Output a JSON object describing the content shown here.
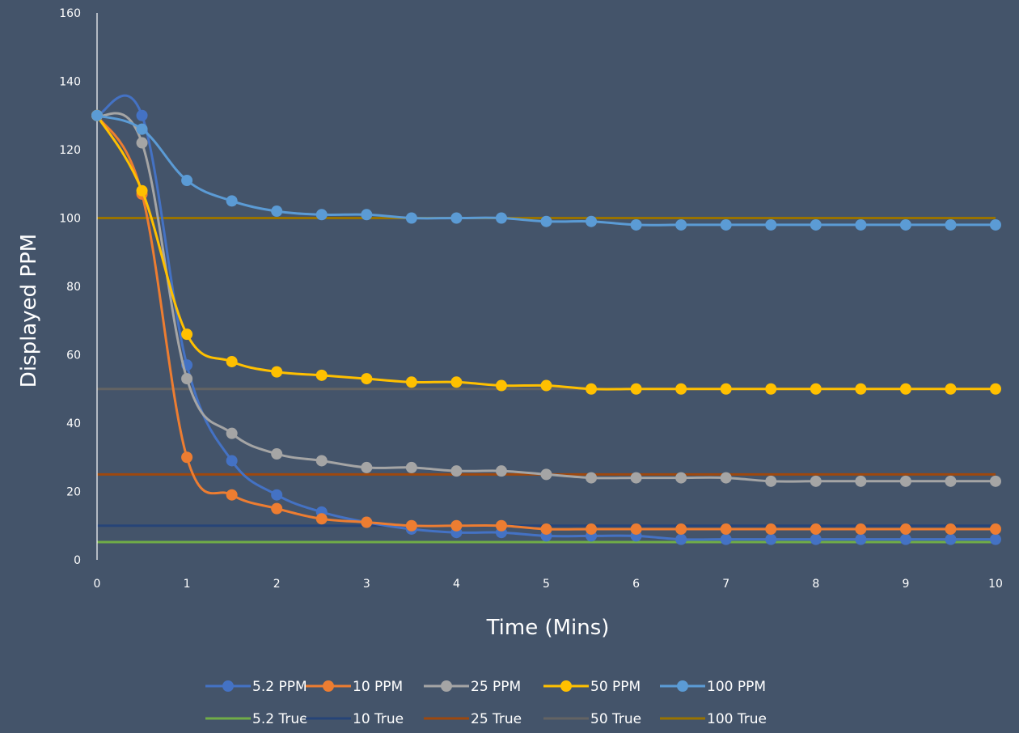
{
  "chart_data": {
    "type": "line",
    "title": "",
    "xlabel": "Time (Mins)",
    "ylabel": "Displayed PPM",
    "xlim": [
      0,
      10
    ],
    "ylim": [
      0,
      160
    ],
    "x_ticks": [
      "0",
      "1",
      "2",
      "3",
      "4",
      "5",
      "6",
      "7",
      "8",
      "9",
      "10"
    ],
    "y_ticks": [
      "0",
      "20",
      "40",
      "60",
      "80",
      "100",
      "120",
      "140",
      "160"
    ],
    "grid": false,
    "legend_position": "bottom",
    "x": [
      0,
      0.5,
      1,
      1.5,
      2,
      2.5,
      3,
      3.5,
      4,
      4.5,
      5,
      5.5,
      6,
      6.5,
      7,
      7.5,
      8,
      8.5,
      9,
      9.5,
      10
    ],
    "series": [
      {
        "name": "5.2 PPM",
        "color": "#4472c4",
        "markers": true,
        "values": [
          130,
          130,
          57,
          29,
          19,
          14,
          11,
          9,
          8,
          8,
          7,
          7,
          7,
          6,
          6,
          6,
          6,
          6,
          6,
          6,
          6
        ]
      },
      {
        "name": "10 PPM",
        "color": "#ed7d31",
        "markers": true,
        "values": [
          130,
          107,
          30,
          19,
          15,
          12,
          11,
          10,
          10,
          10,
          9,
          9,
          9,
          9,
          9,
          9,
          9,
          9,
          9,
          9,
          9
        ]
      },
      {
        "name": "25 PPM",
        "color": "#a5a5a5",
        "markers": true,
        "values": [
          130,
          122,
          53,
          37,
          31,
          29,
          27,
          27,
          26,
          26,
          25,
          24,
          24,
          24,
          24,
          23,
          23,
          23,
          23,
          23,
          23
        ]
      },
      {
        "name": "50 PPM",
        "color": "#ffc000",
        "markers": true,
        "values": [
          130,
          108,
          66,
          58,
          55,
          54,
          53,
          52,
          52,
          51,
          51,
          50,
          50,
          50,
          50,
          50,
          50,
          50,
          50,
          50,
          50
        ]
      },
      {
        "name": "100 PPM",
        "color": "#5b9bd5",
        "markers": true,
        "values": [
          130,
          126,
          111,
          105,
          102,
          101,
          101,
          100,
          100,
          100,
          99,
          99,
          98,
          98,
          98,
          98,
          98,
          98,
          98,
          98,
          98
        ]
      },
      {
        "name": "5.2 True",
        "color": "#70ad47",
        "markers": false,
        "constant": 5.2
      },
      {
        "name": "10 True",
        "color": "#264478",
        "markers": false,
        "constant": 10
      },
      {
        "name": "25 True",
        "color": "#9e480e",
        "markers": false,
        "constant": 25
      },
      {
        "name": "50 True",
        "color": "#636363",
        "markers": false,
        "constant": 50
      },
      {
        "name": "100 True",
        "color": "#997300",
        "markers": false,
        "constant": 100
      }
    ]
  }
}
